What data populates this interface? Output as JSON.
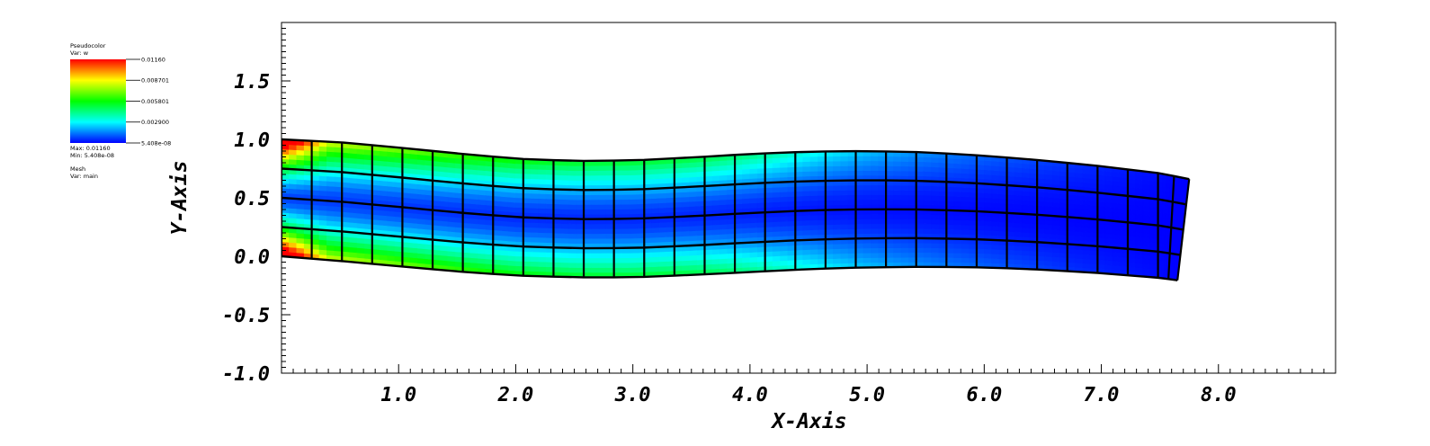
{
  "legend": {
    "plot_type": "Pseudocolor",
    "var_label": "Var: w",
    "max_label": "Max: 0.01160",
    "min_label": "Min: 5.408e-08",
    "mesh_label": "Mesh",
    "mesh_var_label": "Var: main",
    "colorbar_ticks": [
      "0.01160",
      "0.008701",
      "0.005801",
      "0.002900",
      "5.408e-08"
    ],
    "colormap": [
      "#0000ff",
      "#00ffff",
      "#00ff00",
      "#ffff00",
      "#ff0000"
    ]
  },
  "chart_data": {
    "type": "heatmap",
    "title": "",
    "xlabel": "X-Axis",
    "ylabel": "Y-Axis",
    "xlim": [
      0,
      9
    ],
    "ylim": [
      -1,
      2
    ],
    "x_ticks": [
      "1.0",
      "2.0",
      "3.0",
      "4.0",
      "5.0",
      "6.0",
      "7.0",
      "8.0"
    ],
    "y_ticks": [
      "-1.0",
      "-0.5",
      "0.0",
      "0.5",
      "1.0",
      "1.5"
    ],
    "value_range": [
      5.408e-08,
      0.0116
    ],
    "mesh": {
      "columns": 31,
      "layers": 4,
      "top_edge": [
        [
          0.0,
          1.0
        ],
        [
          0.5,
          0.975
        ],
        [
          1.0,
          0.93
        ],
        [
          1.5,
          0.88
        ],
        [
          2.0,
          0.835
        ],
        [
          2.5,
          0.815
        ],
        [
          3.0,
          0.82
        ],
        [
          3.5,
          0.845
        ],
        [
          4.0,
          0.875
        ],
        [
          4.5,
          0.895
        ],
        [
          5.0,
          0.9
        ],
        [
          5.5,
          0.89
        ],
        [
          6.0,
          0.86
        ],
        [
          6.5,
          0.82
        ],
        [
          7.0,
          0.77
        ],
        [
          7.5,
          0.71
        ],
        [
          7.75,
          0.66
        ]
      ],
      "bottom_edge": [
        [
          0.0,
          0.0
        ],
        [
          0.5,
          -0.04
        ],
        [
          1.0,
          -0.085
        ],
        [
          1.5,
          -0.13
        ],
        [
          2.0,
          -0.165
        ],
        [
          2.5,
          -0.18
        ],
        [
          3.0,
          -0.18
        ],
        [
          3.5,
          -0.16
        ],
        [
          4.0,
          -0.135
        ],
        [
          4.5,
          -0.11
        ],
        [
          5.0,
          -0.095
        ],
        [
          5.5,
          -0.09
        ],
        [
          6.0,
          -0.095
        ],
        [
          6.5,
          -0.115
        ],
        [
          7.0,
          -0.145
        ],
        [
          7.5,
          -0.185
        ],
        [
          7.65,
          -0.205
        ]
      ]
    }
  }
}
